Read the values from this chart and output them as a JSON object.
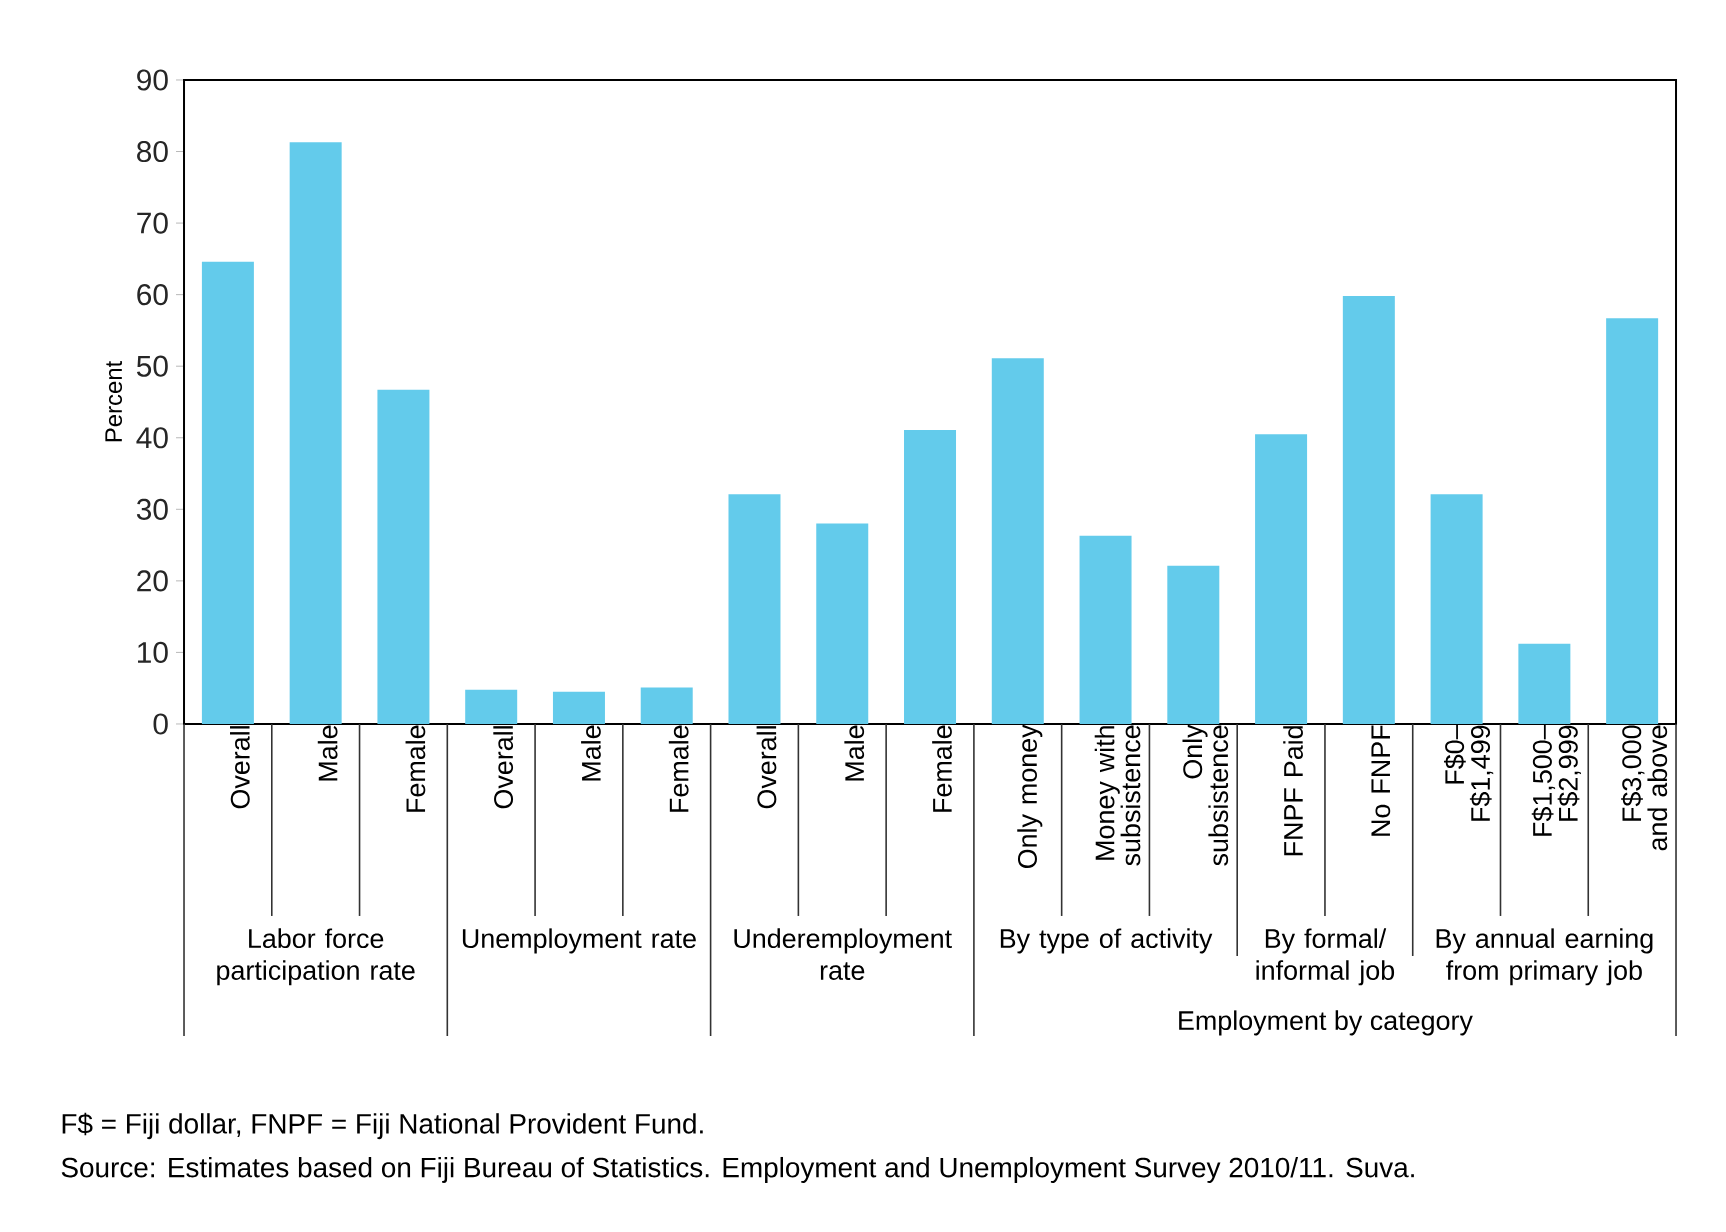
{
  "chart_data": {
    "type": "bar",
    "ylabel": "Percent",
    "categories": [
      "Overall",
      "Male",
      "Female",
      "Overall",
      "Male",
      "Female",
      "Overall",
      "Male",
      "Female",
      "Only money",
      "Money with subsistence",
      "Only subsistence",
      "FNPF Paid",
      "No FNPF",
      "F$0– F$1,499",
      "F$1,500– F$2,999",
      "F$3,000 and above"
    ],
    "values": [
      64.6,
      81.3,
      46.7,
      4.8,
      4.5,
      5.1,
      32.1,
      28.0,
      41.1,
      51.1,
      26.3,
      22.1,
      40.5,
      59.8,
      32.1,
      11.2,
      56.7
    ],
    "color": "#63cbeb",
    "ylim": [
      0,
      90
    ],
    "yticks": [
      0,
      10,
      20,
      30,
      40,
      50,
      60,
      70,
      80,
      90
    ],
    "grid": false,
    "annotations": [
      "Labor force participation rate",
      "Unemployment rate",
      "Underemployment rate",
      "By type of activity",
      "By formal/ informal job",
      "By annual earning from primary job",
      "Employment by category",
      "F$ = Fiji dollar, FNPF = Fiji National Provident Fund.",
      "Source: Estimates based on Fiji Bureau of Statistics. Employment and Unemployment Survey 2010/11. Suva."
    ]
  }
}
